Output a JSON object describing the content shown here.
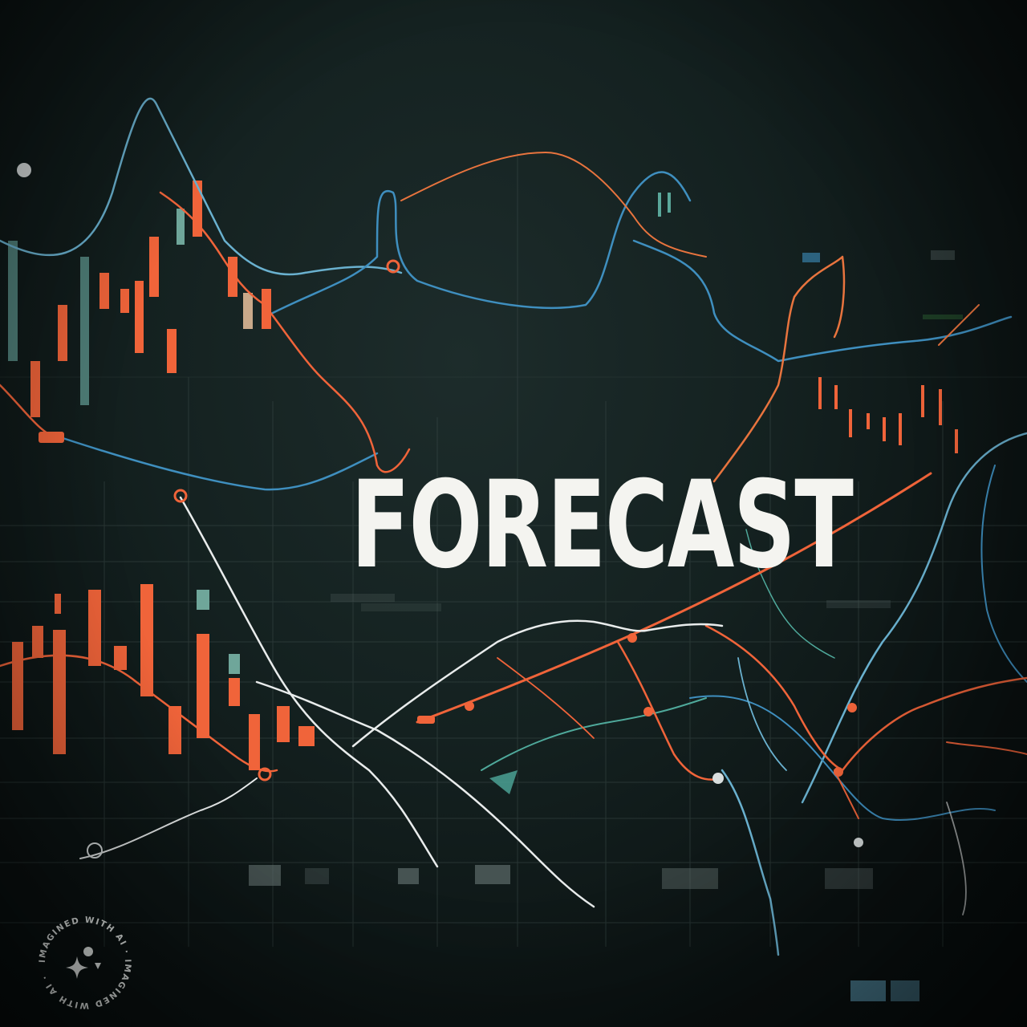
{
  "headline": {
    "text": "FORECAST"
  },
  "badge": {
    "text": "IMAGINED WITH AI · IMAGINED WITH AI · ",
    "icon": "sparkle-icon"
  },
  "colors": {
    "background": "#0d1414",
    "grid": "#3b4a48",
    "orange": "#f0643a",
    "blue": "#3f8fbf",
    "teal": "#5aa79a",
    "white": "#e9ecec",
    "headline": "#f4f4f0"
  }
}
